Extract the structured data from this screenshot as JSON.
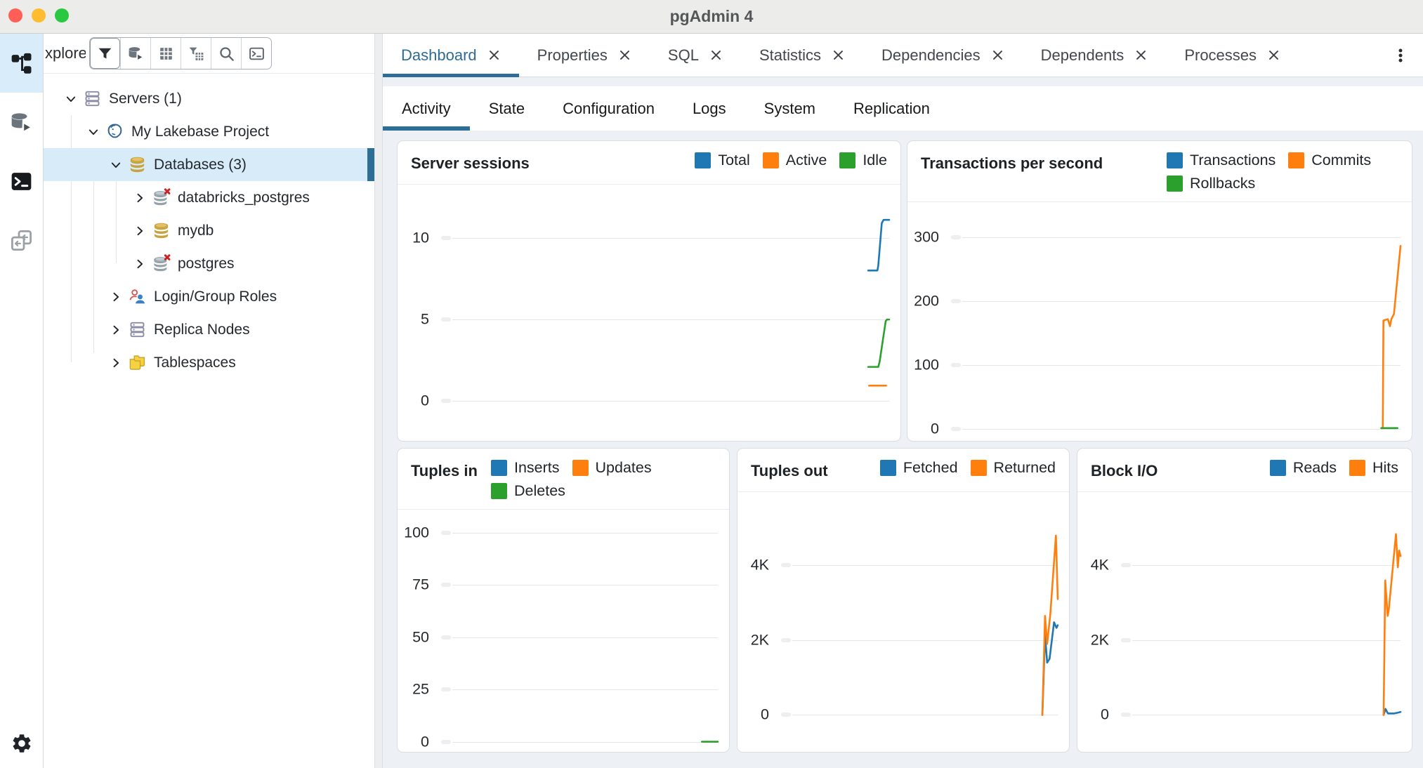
{
  "window": {
    "title": "pgAdmin 4",
    "accent": "#2C6E96"
  },
  "iconstrip": {
    "items": [
      "object-explorer-icon",
      "query-tool-icon",
      "psql-tool-icon",
      "schema-diff-icon"
    ],
    "bottom": "settings-gear-icon"
  },
  "explorer": {
    "header": "xplorer",
    "toolbar": [
      "filter-icon",
      "query-tool-icon",
      "view-data-table-icon",
      "filtered-rows-icon",
      "search-icon",
      "psql-terminal-icon"
    ],
    "tree": [
      {
        "label": "Servers (1)",
        "icon": "server-stack-icon",
        "level": 0,
        "expanded": true
      },
      {
        "label": "My Lakebase Project",
        "icon": "postgresql-server-icon",
        "level": 1,
        "expanded": true
      },
      {
        "label": "Databases (3)",
        "icon": "database-icon",
        "level": 2,
        "expanded": true,
        "selected": true
      },
      {
        "label": "databricks_postgres",
        "icon": "database-disconnected-icon",
        "level": 3,
        "expanded": false
      },
      {
        "label": "mydb",
        "icon": "database-icon",
        "level": 3,
        "expanded": false
      },
      {
        "label": "postgres",
        "icon": "database-disconnected-icon",
        "level": 3,
        "expanded": false
      },
      {
        "label": "Login/Group Roles",
        "icon": "login-group-roles-icon",
        "level": 2,
        "expanded": false
      },
      {
        "label": "Replica Nodes",
        "icon": "server-stack-icon",
        "level": 2,
        "expanded": false
      },
      {
        "label": "Tablespaces",
        "icon": "tablespaces-icon",
        "level": 2,
        "expanded": false
      }
    ]
  },
  "tabs": {
    "items": [
      {
        "label": "Dashboard",
        "active": true
      },
      {
        "label": "Properties",
        "active": false
      },
      {
        "label": "SQL",
        "active": false
      },
      {
        "label": "Statistics",
        "active": false
      },
      {
        "label": "Dependencies",
        "active": false
      },
      {
        "label": "Dependents",
        "active": false
      },
      {
        "label": "Processes",
        "active": false
      }
    ],
    "menu_icon": "kebab-menu-icon"
  },
  "subtabs": {
    "items": [
      {
        "label": "Activity",
        "active": true
      },
      {
        "label": "State",
        "active": false
      },
      {
        "label": "Configuration",
        "active": false
      },
      {
        "label": "Logs",
        "active": false
      },
      {
        "label": "System",
        "active": false
      },
      {
        "label": "Replication",
        "active": false
      }
    ]
  },
  "chart_data": [
    {
      "type": "line",
      "title": "Server sessions",
      "legend_position": "top-right",
      "grid": true,
      "xlim": [
        0,
        100
      ],
      "ylim": [
        -2,
        13
      ],
      "ticks": [
        0,
        5,
        10
      ],
      "tick_labels": [
        "0",
        "5",
        "10"
      ],
      "series": [
        {
          "name": "Total",
          "color": "#1F77B4",
          "points": [
            [
              95.2,
              8
            ],
            [
              97.3,
              8
            ],
            [
              97.5,
              8.3
            ],
            [
              98.3,
              10.9
            ],
            [
              98.7,
              11.1
            ],
            [
              100,
              11.1
            ]
          ]
        },
        {
          "name": "Active",
          "color": "#FF7F0E",
          "points": [
            [
              95.4,
              0.95
            ],
            [
              99.3,
              0.95
            ]
          ]
        },
        {
          "name": "Idle",
          "color": "#2CA02C",
          "points": [
            [
              95.2,
              2.1
            ],
            [
              97.5,
              2.1
            ],
            [
              97.8,
              2.4
            ],
            [
              99.2,
              4.9
            ],
            [
              99.5,
              5
            ],
            [
              100,
              5
            ]
          ]
        }
      ]
    },
    {
      "type": "line",
      "title": "Transactions per second",
      "legend_position": "top-right",
      "grid": true,
      "xlim": [
        0,
        100
      ],
      "ylim": [
        -8,
        349
      ],
      "ticks": [
        0,
        100,
        200,
        300
      ],
      "tick_labels": [
        "0",
        "100",
        "200",
        "300"
      ],
      "series": [
        {
          "name": "Transactions",
          "color": "#1F77B4",
          "points": []
        },
        {
          "name": "Commits",
          "color": "#FF7F0E",
          "points": [
            [
              95.7,
              1
            ],
            [
              95.95,
              1
            ],
            [
              96.1,
              170
            ],
            [
              97.1,
              172
            ],
            [
              97.6,
              161
            ],
            [
              97.9,
              172
            ],
            [
              98.5,
              180
            ],
            [
              100,
              287
            ]
          ]
        },
        {
          "name": "Rollbacks",
          "color": "#2CA02C",
          "points": [
            [
              95.6,
              1
            ],
            [
              99.3,
              1
            ]
          ]
        }
      ]
    },
    {
      "type": "line",
      "title": "Tuples in",
      "legend_position": "top-right",
      "grid": true,
      "xlim": [
        0,
        100
      ],
      "ylim": [
        -1.5,
        109
      ],
      "ticks": [
        0,
        25,
        50,
        75,
        100
      ],
      "tick_labels": [
        "0",
        "25",
        "50",
        "75",
        "100"
      ],
      "series": [
        {
          "name": "Inserts",
          "color": "#1F77B4",
          "points": []
        },
        {
          "name": "Updates",
          "color": "#FF7F0E",
          "points": []
        },
        {
          "name": "Deletes",
          "color": "#2CA02C",
          "points": [
            [
              94,
              0
            ],
            [
              100,
              0
            ]
          ]
        }
      ]
    },
    {
      "type": "line",
      "title": "Tuples out",
      "legend_position": "top-right",
      "grid": true,
      "xlim": [
        0,
        100
      ],
      "ylim": [
        -800,
        5850
      ],
      "ticks": [
        0,
        2000,
        4000
      ],
      "tick_labels": [
        "0",
        "2K",
        "4K"
      ],
      "series": [
        {
          "name": "Fetched",
          "color": "#1F77B4",
          "points": [
            [
              94.2,
              0
            ],
            [
              95.2,
              2150
            ],
            [
              96,
              1400
            ],
            [
              96.9,
              1500
            ],
            [
              98.6,
              2480
            ],
            [
              99.5,
              2330
            ],
            [
              100,
              2400
            ]
          ]
        },
        {
          "name": "Returned",
          "color": "#FF7F0E",
          "points": [
            [
              94.2,
              0
            ],
            [
              95.2,
              2650
            ],
            [
              96,
              1900
            ],
            [
              97.2,
              2700
            ],
            [
              99.3,
              4800
            ],
            [
              100,
              3100
            ]
          ]
        }
      ]
    },
    {
      "type": "line",
      "title": "Block I/O",
      "legend_position": "top-right",
      "grid": true,
      "xlim": [
        0,
        100
      ],
      "ylim": [
        -800,
        5850
      ],
      "ticks": [
        0,
        2000,
        4000
      ],
      "tick_labels": [
        "0",
        "2K",
        "4K"
      ],
      "series": [
        {
          "name": "Reads",
          "color": "#1F77B4",
          "points": [
            [
              93.7,
              0
            ],
            [
              94.4,
              160
            ],
            [
              95.3,
              40
            ],
            [
              97.5,
              40
            ],
            [
              99,
              60
            ],
            [
              100,
              80
            ]
          ]
        },
        {
          "name": "Hits",
          "color": "#FF7F0E",
          "points": [
            [
              93.7,
              0
            ],
            [
              94.3,
              3600
            ],
            [
              95.2,
              2650
            ],
            [
              95.6,
              2800
            ],
            [
              98.3,
              4840
            ],
            [
              99,
              3950
            ],
            [
              99.5,
              4400
            ],
            [
              100,
              4250
            ]
          ]
        }
      ]
    }
  ]
}
